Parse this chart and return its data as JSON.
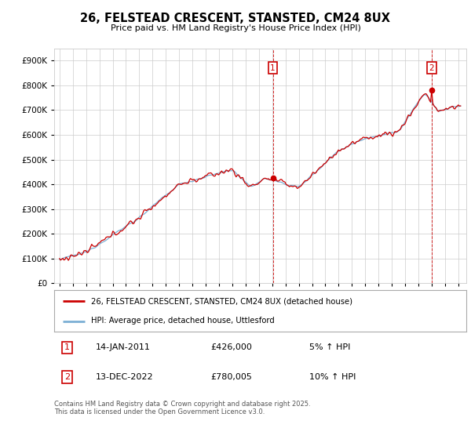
{
  "title": "26, FELSTEAD CRESCENT, STANSTED, CM24 8UX",
  "subtitle": "Price paid vs. HM Land Registry's House Price Index (HPI)",
  "legend_line1": "26, FELSTEAD CRESCENT, STANSTED, CM24 8UX (detached house)",
  "legend_line2": "HPI: Average price, detached house, Uttlesford",
  "annotation1_date": "14-JAN-2011",
  "annotation1_price": "£426,000",
  "annotation1_hpi": "5% ↑ HPI",
  "annotation2_date": "13-DEC-2022",
  "annotation2_price": "£780,005",
  "annotation2_hpi": "10% ↑ HPI",
  "footer": "Contains HM Land Registry data © Crown copyright and database right 2025.\nThis data is licensed under the Open Government Licence v3.0.",
  "line1_color": "#cc0000",
  "line2_color": "#7bafd4",
  "vline_color": "#cc0000",
  "grid_color": "#cccccc",
  "background_color": "#ffffff",
  "ylim_max": 950000,
  "t1_year": 2011.04,
  "t2_year": 2022.96,
  "t1_price": 426000,
  "t2_price": 780005
}
